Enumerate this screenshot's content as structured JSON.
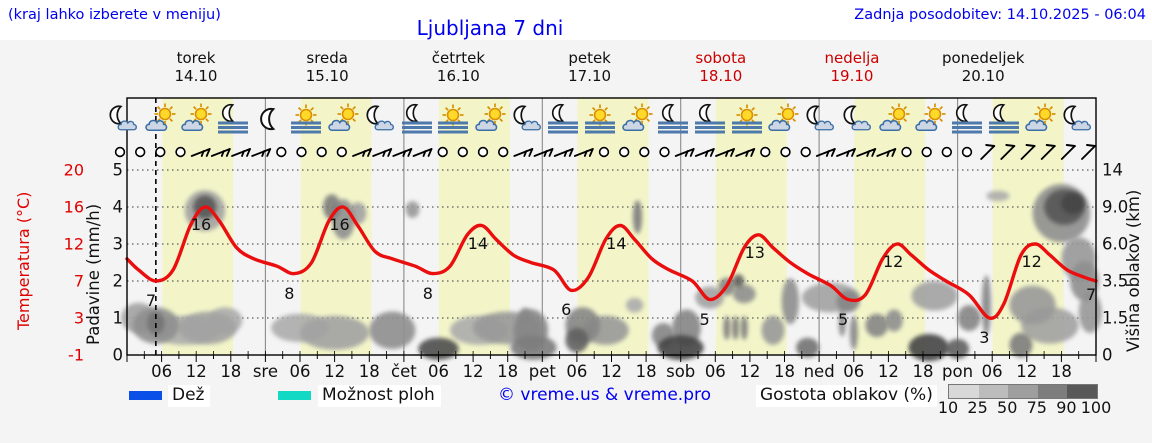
{
  "header": {
    "hint": "(kraj lahko izberete v meniju)",
    "title": "Ljubljana 7 dni",
    "updated": "Zadnja posodobitev: 14.10.2025 - 06:04"
  },
  "days": [
    {
      "name": "torek",
      "date": "14.10",
      "weekend": false
    },
    {
      "name": "sreda",
      "date": "15.10",
      "weekend": false
    },
    {
      "name": "četrtek",
      "date": "16.10",
      "weekend": false
    },
    {
      "name": "petek",
      "date": "17.10",
      "weekend": false
    },
    {
      "name": "sobota",
      "date": "18.10",
      "weekend": true
    },
    {
      "name": "nedelja",
      "date": "19.10",
      "weekend": true
    },
    {
      "name": "ponedeljek",
      "date": "20.10",
      "weekend": false
    }
  ],
  "axes": {
    "temp_title": "Temperatura (°C)",
    "temp_ticks": [
      "20",
      "16",
      "12",
      "7",
      "3",
      "-1"
    ],
    "precip_title": "Padavine (mm/h)",
    "precip_ticks": [
      "5",
      "4",
      "3",
      "2",
      "1",
      "0"
    ],
    "cloud_title": "Višina oblakov (km)",
    "cloud_ticks": [
      "14",
      "9.0",
      "6.0",
      "3.5",
      "1.5",
      "0"
    ],
    "hour_ticks": [
      "06",
      "12",
      "18"
    ],
    "day_abbrevs": [
      "sre",
      "čet",
      "pet",
      "sob",
      "ned",
      "pon"
    ]
  },
  "legend": {
    "rain_label": "Dež",
    "rain_color": "#0a4fe8",
    "showers_label": "Možnost ploh",
    "showers_color": "#12d9c4",
    "copyright": "© vreme.us & vreme.pro",
    "cloud_density_label": "Gostota oblakov (%)",
    "cloud_density_ticks": [
      "10",
      "25",
      "50",
      "75",
      "90",
      "100"
    ],
    "cloud_density_colors": [
      "#d8d8d8",
      "#bcbcbc",
      "#9e9e9e",
      "#7d7d7d",
      "#585858"
    ]
  },
  "chart_data": {
    "type": "line",
    "title": "Ljubljana 7 dni",
    "x_unit": "hours from torek 14.10 00:00",
    "x_range": [
      0,
      168
    ],
    "now_hour": 5,
    "daylight_hours": [
      6.1,
      18.4
    ],
    "temp_color": "#ea0e0e",
    "temp_axis_map": [
      [
        -1,
        0
      ],
      [
        3,
        1
      ],
      [
        7,
        2
      ],
      [
        12,
        3
      ],
      [
        16,
        4
      ],
      [
        20,
        5
      ]
    ],
    "cloud_axis_map": [
      [
        0,
        0
      ],
      [
        1.5,
        1
      ],
      [
        3.5,
        2
      ],
      [
        6,
        3
      ],
      [
        9,
        4
      ],
      [
        14,
        5
      ]
    ],
    "precip_axis_range": [
      0,
      5.55
    ],
    "temperature_points": [
      [
        0,
        10
      ],
      [
        2,
        8.5
      ],
      [
        5,
        7
      ],
      [
        8,
        8.5
      ],
      [
        11,
        14
      ],
      [
        13.5,
        16
      ],
      [
        16,
        14.5
      ],
      [
        19,
        11.5
      ],
      [
        22,
        10
      ],
      [
        26,
        9
      ],
      [
        29,
        8
      ],
      [
        32,
        9.5
      ],
      [
        35,
        14.5
      ],
      [
        37.5,
        16
      ],
      [
        40,
        14
      ],
      [
        43,
        11
      ],
      [
        46,
        10
      ],
      [
        50,
        9
      ],
      [
        53,
        8
      ],
      [
        56,
        9
      ],
      [
        59,
        13
      ],
      [
        61.5,
        14
      ],
      [
        64,
        12.5
      ],
      [
        67,
        10.5
      ],
      [
        70,
        9.5
      ],
      [
        74,
        8.5
      ],
      [
        77,
        6
      ],
      [
        80,
        7.5
      ],
      [
        83,
        12.5
      ],
      [
        85.5,
        14
      ],
      [
        88,
        12.5
      ],
      [
        91,
        10
      ],
      [
        94,
        8.5
      ],
      [
        98,
        7
      ],
      [
        101,
        5
      ],
      [
        104,
        6.5
      ],
      [
        107,
        11.5
      ],
      [
        109.5,
        13
      ],
      [
        112,
        11.5
      ],
      [
        115,
        9.5
      ],
      [
        118,
        8
      ],
      [
        122,
        6.5
      ],
      [
        125,
        5
      ],
      [
        128,
        5.5
      ],
      [
        131,
        10
      ],
      [
        133.5,
        12
      ],
      [
        136,
        10.5
      ],
      [
        139,
        8.5
      ],
      [
        142,
        7
      ],
      [
        146,
        5.5
      ],
      [
        149.5,
        3
      ],
      [
        152,
        4.5
      ],
      [
        155,
        10.5
      ],
      [
        157.5,
        12
      ],
      [
        160,
        10.5
      ],
      [
        163,
        8.5
      ],
      [
        166,
        7.5
      ],
      [
        168,
        7
      ]
    ],
    "temp_extremes": [
      {
        "h": 5,
        "v": 7,
        "type": "min"
      },
      {
        "h": 13.5,
        "v": 16,
        "type": "max"
      },
      {
        "h": 29,
        "v": 8,
        "type": "min"
      },
      {
        "h": 37.5,
        "v": 16,
        "type": "max"
      },
      {
        "h": 53,
        "v": 8,
        "type": "min"
      },
      {
        "h": 61.5,
        "v": 14,
        "type": "max"
      },
      {
        "h": 77,
        "v": 6,
        "type": "min"
      },
      {
        "h": 85.5,
        "v": 14,
        "type": "max"
      },
      {
        "h": 101,
        "v": 5,
        "type": "min"
      },
      {
        "h": 109.5,
        "v": 13,
        "type": "max"
      },
      {
        "h": 125,
        "v": 5,
        "type": "min"
      },
      {
        "h": 133.5,
        "v": 12,
        "type": "max"
      },
      {
        "h": 149.5,
        "v": 3,
        "type": "min"
      },
      {
        "h": 157.5,
        "v": 12,
        "type": "max"
      },
      {
        "h": 168,
        "v": 7,
        "type": "end"
      }
    ],
    "weather_icons": [
      "moon-cloud",
      "sun-cloud",
      "sun-cloud",
      "moon-fog",
      "moon",
      "sun-fog",
      "sun-cloud",
      "moon-cloud",
      "moon-fog",
      "sun-fog",
      "sun-cloud",
      "moon-cloud",
      "moon-fog",
      "sun-fog",
      "sun-cloud",
      "moon-fog",
      "moon-fog",
      "sun-fog",
      "sun-cloud",
      "moon-cloud",
      "moon-cloud",
      "sun-cloud",
      "sun-cloud",
      "moon-fog",
      "moon-fog",
      "sun-cloud",
      "moon-cloud"
    ],
    "wind_symbols": [
      "calm",
      "calm",
      "calm",
      "calm",
      "barb",
      "barb",
      "barb",
      "barb",
      "calm",
      "calm",
      "calm",
      "calm",
      "barb",
      "barb",
      "barb",
      "barb",
      "calm",
      "calm",
      "calm",
      "calm",
      "barb",
      "barb",
      "barb",
      "barb",
      "calm",
      "calm",
      "calm",
      "calm",
      "barb",
      "barb",
      "barb",
      "barb",
      "calm",
      "calm",
      "calm",
      "barb",
      "barb",
      "barb",
      "barb",
      "calm",
      "calm",
      "calm",
      "calm",
      "slash",
      "slash",
      "slash",
      "slash",
      "slash",
      "slash"
    ],
    "cloud_blobs": [
      {
        "h": 2,
        "km": 1.5,
        "rh": 3,
        "rkm": 0.7,
        "d": 0.35
      },
      {
        "h": 5,
        "km": 1.2,
        "rh": 4,
        "rkm": 0.8,
        "d": 0.45
      },
      {
        "h": 5,
        "km": 1.3,
        "rh": 1.5,
        "rkm": 0.5,
        "d": 0.6
      },
      {
        "h": 10,
        "km": 1.0,
        "rh": 6,
        "rkm": 0.6,
        "d": 0.3
      },
      {
        "h": 14,
        "km": 1.1,
        "rh": 5,
        "rkm": 0.7,
        "d": 0.35
      },
      {
        "h": 17,
        "km": 1.4,
        "rh": 3,
        "rkm": 0.6,
        "d": 0.3
      },
      {
        "h": 13.5,
        "km": 9,
        "rh": 2,
        "rkm": 1.2,
        "d": 0.75
      },
      {
        "h": 13.5,
        "km": 8.7,
        "rh": 3.5,
        "rkm": 2,
        "d": 0.35
      },
      {
        "h": 30,
        "km": 1.1,
        "rh": 5,
        "rkm": 0.6,
        "d": 0.3
      },
      {
        "h": 36,
        "km": 0.9,
        "rh": 6,
        "rkm": 0.7,
        "d": 0.35
      },
      {
        "h": 35.5,
        "km": 9,
        "rh": 1.5,
        "rkm": 1.3,
        "d": 0.55
      },
      {
        "h": 37.5,
        "km": 8,
        "rh": 2,
        "rkm": 1.8,
        "d": 0.45
      },
      {
        "h": 40,
        "km": 8.5,
        "rh": 1.5,
        "rkm": 1,
        "d": 0.35
      },
      {
        "h": 49.5,
        "km": 8.8,
        "rh": 1.2,
        "rkm": 0.8,
        "d": 0.4
      },
      {
        "h": 46,
        "km": 1.0,
        "rh": 4,
        "rkm": 0.8,
        "d": 0.45
      },
      {
        "h": 54,
        "km": 0.25,
        "rh": 3.5,
        "rkm": 0.45,
        "d": 0.8
      },
      {
        "h": 61,
        "km": 1.0,
        "rh": 5,
        "rkm": 0.6,
        "d": 0.3
      },
      {
        "h": 66,
        "km": 1.1,
        "rh": 6,
        "rkm": 0.7,
        "d": 0.4
      },
      {
        "h": 70,
        "km": 1.0,
        "rh": 3,
        "rkm": 0.9,
        "d": 0.5
      },
      {
        "h": 70.5,
        "km": 0.3,
        "rh": 4,
        "rkm": 0.5,
        "d": 0.55
      },
      {
        "h": 69,
        "km": 1.6,
        "rh": 1,
        "rkm": 0.4,
        "d": 0.45
      },
      {
        "h": 79,
        "km": 1.2,
        "rh": 3,
        "rkm": 0.8,
        "d": 0.5
      },
      {
        "h": 78,
        "km": 0.6,
        "rh": 2,
        "rkm": 0.5,
        "d": 0.7
      },
      {
        "h": 83,
        "km": 1.0,
        "rh": 4,
        "rkm": 0.6,
        "d": 0.4
      },
      {
        "h": 88.5,
        "km": 8.2,
        "rh": 0.8,
        "rkm": 1.5,
        "d": 0.55
      },
      {
        "h": 88,
        "km": 2.2,
        "rh": 1.5,
        "rkm": 0.4,
        "d": 0.3
      },
      {
        "h": 93,
        "km": 0.8,
        "rh": 2,
        "rkm": 0.5,
        "d": 0.5
      },
      {
        "h": 96,
        "km": 0.3,
        "rh": 4,
        "rkm": 0.5,
        "d": 0.85
      },
      {
        "h": 97,
        "km": 1.1,
        "rh": 2.5,
        "rkm": 0.8,
        "d": 0.5
      },
      {
        "h": 101,
        "km": 2.6,
        "rh": 2.5,
        "rkm": 0.6,
        "d": 0.35
      },
      {
        "h": 104,
        "km": 3.2,
        "rh": 1.5,
        "rkm": 0.5,
        "d": 0.5
      },
      {
        "h": 106,
        "km": 3.5,
        "rh": 1,
        "rkm": 0.4,
        "d": 0.7
      },
      {
        "h": 107,
        "km": 2.8,
        "rh": 2,
        "rkm": 0.5,
        "d": 0.45
      },
      {
        "h": 104,
        "km": 1.1,
        "rh": 0.6,
        "rkm": 0.5,
        "d": 0.55
      },
      {
        "h": 105.5,
        "km": 1.1,
        "rh": 0.6,
        "rkm": 0.5,
        "d": 0.55
      },
      {
        "h": 107,
        "km": 1.1,
        "rh": 0.6,
        "rkm": 0.5,
        "d": 0.55
      },
      {
        "h": 112,
        "km": 1.0,
        "rh": 2,
        "rkm": 0.6,
        "d": 0.4
      },
      {
        "h": 115,
        "km": 2.4,
        "rh": 1.5,
        "rkm": 1.2,
        "d": 0.45
      },
      {
        "h": 118,
        "km": 0.3,
        "rh": 2,
        "rkm": 0.4,
        "d": 0.6
      },
      {
        "h": 122,
        "km": 2.6,
        "rh": 5,
        "rkm": 0.8,
        "d": 0.35
      },
      {
        "h": 125,
        "km": 2.4,
        "rh": 2,
        "rkm": 0.6,
        "d": 0.5
      },
      {
        "h": 124,
        "km": 1.3,
        "rh": 0.6,
        "rkm": 0.6,
        "d": 0.5
      },
      {
        "h": 126,
        "km": 0.9,
        "rh": 0.7,
        "rkm": 0.7,
        "d": 0.5
      },
      {
        "h": 130,
        "km": 1.2,
        "rh": 2,
        "rkm": 0.5,
        "d": 0.5
      },
      {
        "h": 133,
        "km": 1.4,
        "rh": 1.5,
        "rkm": 0.5,
        "d": 0.45
      },
      {
        "h": 139,
        "km": 0.3,
        "rh": 3.5,
        "rkm": 0.55,
        "d": 0.85
      },
      {
        "h": 140,
        "km": 2.7,
        "rh": 4,
        "rkm": 0.8,
        "d": 0.35
      },
      {
        "h": 144,
        "km": 0.25,
        "rh": 2,
        "rkm": 0.4,
        "d": 0.7
      },
      {
        "h": 146,
        "km": 1.5,
        "rh": 2,
        "rkm": 0.6,
        "d": 0.5
      },
      {
        "h": 149,
        "km": 2.2,
        "rh": 0.8,
        "rkm": 1.5,
        "d": 0.5
      },
      {
        "h": 151,
        "km": 10.5,
        "rh": 2,
        "rkm": 0.7,
        "d": 0.3
      },
      {
        "h": 155,
        "km": 0.4,
        "rh": 2,
        "rkm": 0.5,
        "d": 0.55
      },
      {
        "h": 157,
        "km": 2.2,
        "rh": 4,
        "rkm": 1,
        "d": 0.4
      },
      {
        "h": 160,
        "km": 1.2,
        "rh": 5,
        "rkm": 0.8,
        "d": 0.35
      },
      {
        "h": 162,
        "km": 8.5,
        "rh": 5,
        "rkm": 2.8,
        "d": 0.45
      },
      {
        "h": 162.5,
        "km": 9,
        "rh": 3.5,
        "rkm": 1.8,
        "d": 0.75
      },
      {
        "h": 164,
        "km": 9.5,
        "rh": 2,
        "rkm": 1.2,
        "d": 0.85
      },
      {
        "h": 165,
        "km": 5,
        "rh": 3,
        "rkm": 1.5,
        "d": 0.4
      },
      {
        "h": 166,
        "km": 3.5,
        "rh": 2.5,
        "rkm": 1.2,
        "d": 0.45
      },
      {
        "h": 167,
        "km": 1.8,
        "rh": 2,
        "rkm": 1,
        "d": 0.4
      }
    ]
  }
}
